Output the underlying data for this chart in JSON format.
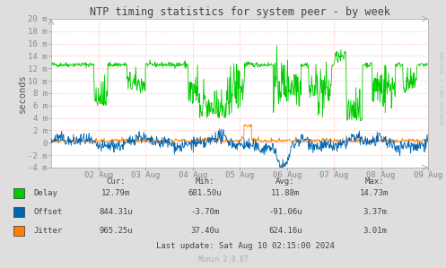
{
  "title": "NTP timing statistics for system peer - by week",
  "ylabel": "seconds",
  "background_color": "#dedede",
  "plot_bg_color": "#ffffff",
  "grid_color": "#ff9999",
  "grid_color2": "#ccccff",
  "watermark": "Munin 2.0.67",
  "rrdtool_text": "RRDTOOL / TOBI OETIKER",
  "ylim_min": -0.004,
  "ylim_max": 0.02,
  "yticks": [
    -0.004,
    -0.002,
    0.0,
    0.002,
    0.004,
    0.006,
    0.008,
    0.01,
    0.012,
    0.014,
    0.016,
    0.018,
    0.02
  ],
  "ytick_labels": [
    "-4 m",
    "-2 m",
    "0",
    "2 m",
    "4 m",
    "6 m",
    "8 m",
    "10 m",
    "12 m",
    "14 m",
    "16 m",
    "18 m",
    "20 m"
  ],
  "xtick_labels": [
    "02 Aug",
    "03 Aug",
    "04 Aug",
    "05 Aug",
    "06 Aug",
    "07 Aug",
    "08 Aug",
    "09 Aug"
  ],
  "delay_color": "#00cc00",
  "offset_color": "#0066b3",
  "jitter_color": "#ff8000",
  "stats_headers": [
    "Cur:",
    "Min:",
    "Avg:",
    "Max:"
  ],
  "stats_delay": [
    "12.79m",
    "681.50u",
    "11.88m",
    "14.73m"
  ],
  "stats_offset": [
    "844.31u",
    "-3.70m",
    "-91.06u",
    "3.37m"
  ],
  "stats_jitter": [
    "965.25u",
    "37.40u",
    "624.16u",
    "3.01m"
  ],
  "last_update": "Last update: Sat Aug 10 02:15:00 2024",
  "n_points": 800
}
